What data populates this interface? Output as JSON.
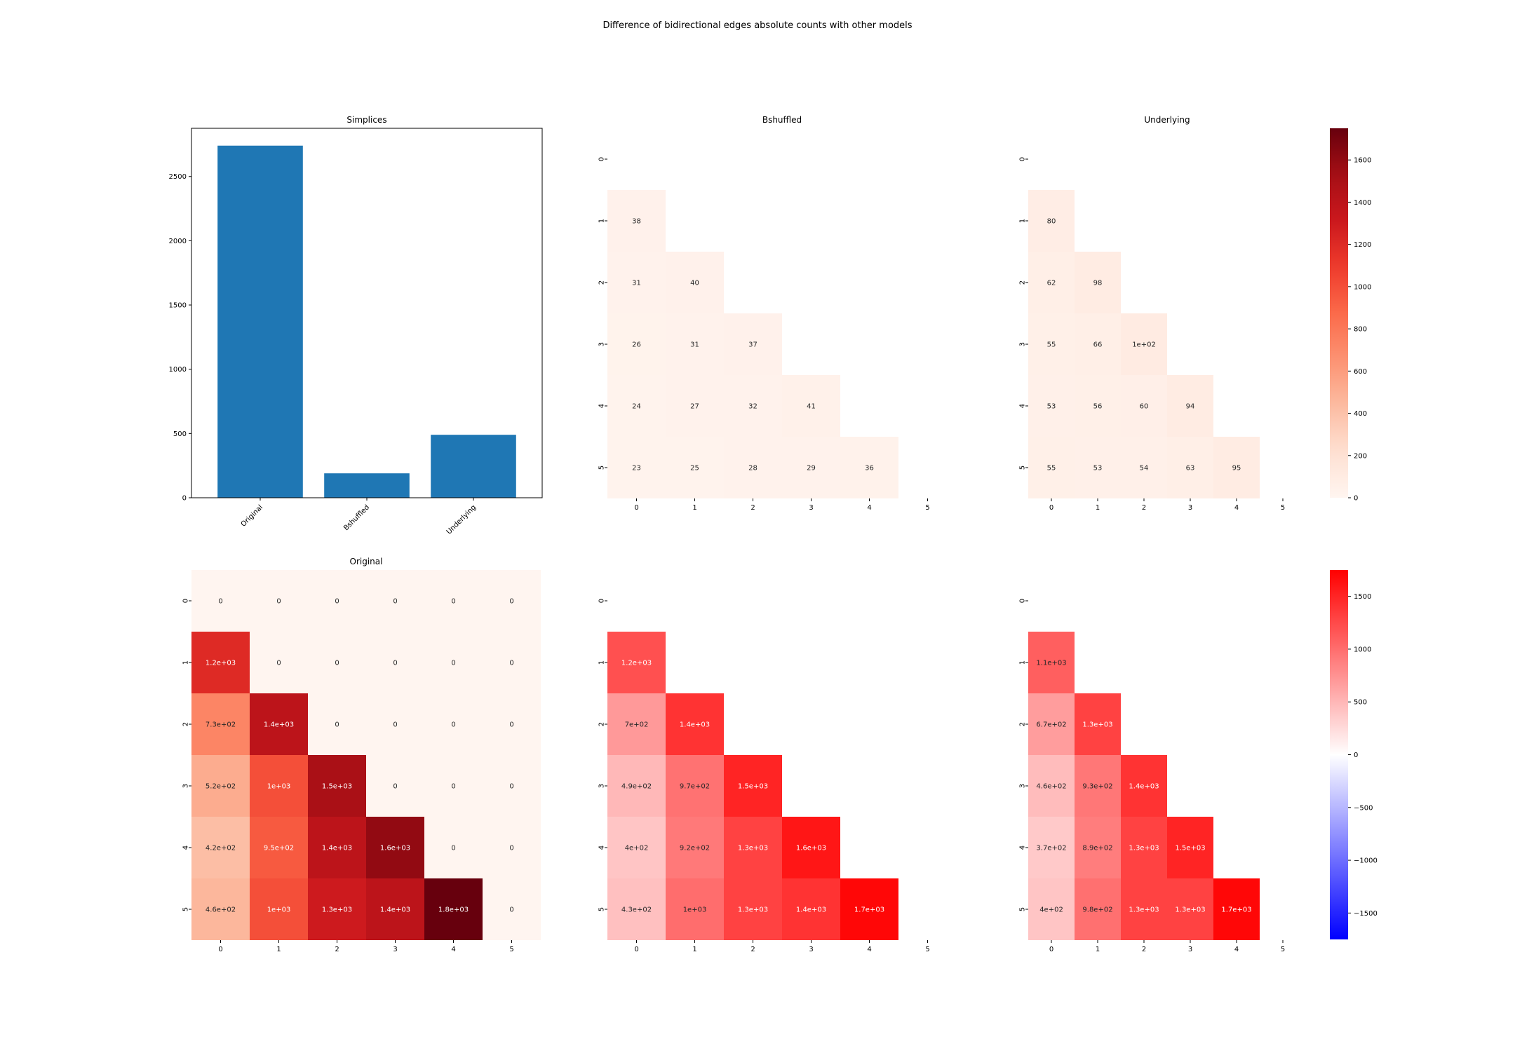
{
  "figure_title": "Difference of bidirectional edges absolute counts with other models",
  "colors": {
    "bar": "#1f77b4",
    "reds_light": "#fff5f0",
    "reds_dark": "#67000d",
    "diverging_neg": "#0000ff",
    "diverging_mid": "#ffffff",
    "diverging_pos": "#ff0000"
  },
  "colorbars": [
    {
      "cmap": "Reds",
      "range": [
        0,
        1750
      ],
      "ticks": [
        0,
        200,
        400,
        600,
        800,
        1000,
        1200,
        1400,
        1600
      ]
    },
    {
      "cmap": "bwr",
      "range": [
        -1750,
        1750
      ],
      "ticks": [
        -1500,
        -1000,
        -500,
        0,
        500,
        1000,
        1500
      ],
      "tick_labels": [
        "−1500",
        "−1000",
        "−500",
        "0",
        "500",
        "1000",
        "1500"
      ]
    }
  ],
  "chart_data": [
    {
      "type": "bar",
      "title": "Simplices",
      "categories": [
        "Original",
        "Bshuffled",
        "Underlying"
      ],
      "values": [
        2740,
        190,
        490
      ],
      "ylim": [
        0,
        2875
      ],
      "yticks": [
        0,
        500,
        1000,
        1500,
        2000,
        2500
      ]
    },
    {
      "type": "heatmap",
      "title": "Bshuffled",
      "cmap": "Reds",
      "row_labels": [
        "0",
        "1",
        "2",
        "3",
        "4",
        "5"
      ],
      "col_labels": [
        "0",
        "1",
        "2",
        "3",
        "4",
        "5"
      ],
      "values": [
        [
          null,
          null,
          null,
          null,
          null,
          null
        ],
        [
          38,
          null,
          null,
          null,
          null,
          null
        ],
        [
          31,
          40,
          null,
          null,
          null,
          null
        ],
        [
          26,
          31,
          37,
          null,
          null,
          null
        ],
        [
          24,
          27,
          32,
          41,
          null,
          null
        ],
        [
          23,
          25,
          28,
          29,
          36,
          null
        ]
      ],
      "labels": [
        [
          null,
          null,
          null,
          null,
          null,
          null
        ],
        [
          "38",
          null,
          null,
          null,
          null,
          null
        ],
        [
          "31",
          "40",
          null,
          null,
          null,
          null
        ],
        [
          "26",
          "31",
          "37",
          null,
          null,
          null
        ],
        [
          "24",
          "27",
          "32",
          "41",
          null,
          null
        ],
        [
          "23",
          "25",
          "28",
          "29",
          "36",
          null
        ]
      ]
    },
    {
      "type": "heatmap",
      "title": "Underlying",
      "cmap": "Reds",
      "row_labels": [
        "0",
        "1",
        "2",
        "3",
        "4",
        "5"
      ],
      "col_labels": [
        "0",
        "1",
        "2",
        "3",
        "4",
        "5"
      ],
      "values": [
        [
          null,
          null,
          null,
          null,
          null,
          null
        ],
        [
          80,
          null,
          null,
          null,
          null,
          null
        ],
        [
          62,
          98,
          null,
          null,
          null,
          null
        ],
        [
          55,
          66,
          100,
          null,
          null,
          null
        ],
        [
          53,
          56,
          60,
          94,
          null,
          null
        ],
        [
          55,
          53,
          54,
          63,
          95,
          null
        ]
      ],
      "labels": [
        [
          null,
          null,
          null,
          null,
          null,
          null
        ],
        [
          "80",
          null,
          null,
          null,
          null,
          null
        ],
        [
          "62",
          "98",
          null,
          null,
          null,
          null
        ],
        [
          "55",
          "66",
          "1e+02",
          null,
          null,
          null
        ],
        [
          "53",
          "56",
          "60",
          "94",
          null,
          null
        ],
        [
          "55",
          "53",
          "54",
          "63",
          "95",
          null
        ]
      ]
    },
    {
      "type": "heatmap",
      "title": "Original",
      "cmap": "Reds",
      "row_labels": [
        "0",
        "1",
        "2",
        "3",
        "4",
        "5"
      ],
      "col_labels": [
        "0",
        "1",
        "2",
        "3",
        "4",
        "5"
      ],
      "values": [
        [
          0,
          0,
          0,
          0,
          0,
          0
        ],
        [
          1200,
          0,
          0,
          0,
          0,
          0
        ],
        [
          730,
          1400,
          0,
          0,
          0,
          0
        ],
        [
          520,
          1000,
          1500,
          0,
          0,
          0
        ],
        [
          420,
          950,
          1400,
          1600,
          0,
          0
        ],
        [
          460,
          1000,
          1300,
          1400,
          1800,
          0
        ]
      ],
      "labels": [
        [
          "0",
          "0",
          "0",
          "0",
          "0",
          "0"
        ],
        [
          "1.2e+03",
          "0",
          "0",
          "0",
          "0",
          "0"
        ],
        [
          "7.3e+02",
          "1.4e+03",
          "0",
          "0",
          "0",
          "0"
        ],
        [
          "5.2e+02",
          "1e+03",
          "1.5e+03",
          "0",
          "0",
          "0"
        ],
        [
          "4.2e+02",
          "9.5e+02",
          "1.4e+03",
          "1.6e+03",
          "0",
          "0"
        ],
        [
          "4.6e+02",
          "1e+03",
          "1.3e+03",
          "1.4e+03",
          "1.8e+03",
          "0"
        ]
      ]
    },
    {
      "type": "heatmap",
      "title": "",
      "cmap": "bwr",
      "row_labels": [
        "0",
        "1",
        "2",
        "3",
        "4",
        "5"
      ],
      "col_labels": [
        "0",
        "1",
        "2",
        "3",
        "4",
        "5"
      ],
      "values": [
        [
          null,
          null,
          null,
          null,
          null,
          null
        ],
        [
          1200,
          null,
          null,
          null,
          null,
          null
        ],
        [
          700,
          1400,
          null,
          null,
          null,
          null
        ],
        [
          490,
          970,
          1500,
          null,
          null,
          null
        ],
        [
          400,
          920,
          1300,
          1600,
          null,
          null
        ],
        [
          430,
          1000,
          1300,
          1400,
          1700,
          null
        ]
      ],
      "labels": [
        [
          null,
          null,
          null,
          null,
          null,
          null
        ],
        [
          "1.2e+03",
          null,
          null,
          null,
          null,
          null
        ],
        [
          "7e+02",
          "1.4e+03",
          null,
          null,
          null,
          null
        ],
        [
          "4.9e+02",
          "9.7e+02",
          "1.5e+03",
          null,
          null,
          null
        ],
        [
          "4e+02",
          "9.2e+02",
          "1.3e+03",
          "1.6e+03",
          null,
          null
        ],
        [
          "4.3e+02",
          "1e+03",
          "1.3e+03",
          "1.4e+03",
          "1.7e+03",
          null
        ]
      ]
    },
    {
      "type": "heatmap",
      "title": "",
      "cmap": "bwr",
      "row_labels": [
        "0",
        "1",
        "2",
        "3",
        "4",
        "5"
      ],
      "col_labels": [
        "0",
        "1",
        "2",
        "3",
        "4",
        "5"
      ],
      "values": [
        [
          null,
          null,
          null,
          null,
          null,
          null
        ],
        [
          1100,
          null,
          null,
          null,
          null,
          null
        ],
        [
          670,
          1300,
          null,
          null,
          null,
          null
        ],
        [
          460,
          930,
          1400,
          null,
          null,
          null
        ],
        [
          370,
          890,
          1300,
          1500,
          null,
          null
        ],
        [
          400,
          980,
          1300,
          1300,
          1700,
          null
        ]
      ],
      "labels": [
        [
          null,
          null,
          null,
          null,
          null,
          null
        ],
        [
          "1.1e+03",
          null,
          null,
          null,
          null,
          null
        ],
        [
          "6.7e+02",
          "1.3e+03",
          null,
          null,
          null,
          null
        ],
        [
          "4.6e+02",
          "9.3e+02",
          "1.4e+03",
          null,
          null,
          null
        ],
        [
          "3.7e+02",
          "8.9e+02",
          "1.3e+03",
          "1.5e+03",
          null,
          null
        ],
        [
          "4e+02",
          "9.8e+02",
          "1.3e+03",
          "1.3e+03",
          "1.7e+03",
          null
        ]
      ]
    }
  ]
}
